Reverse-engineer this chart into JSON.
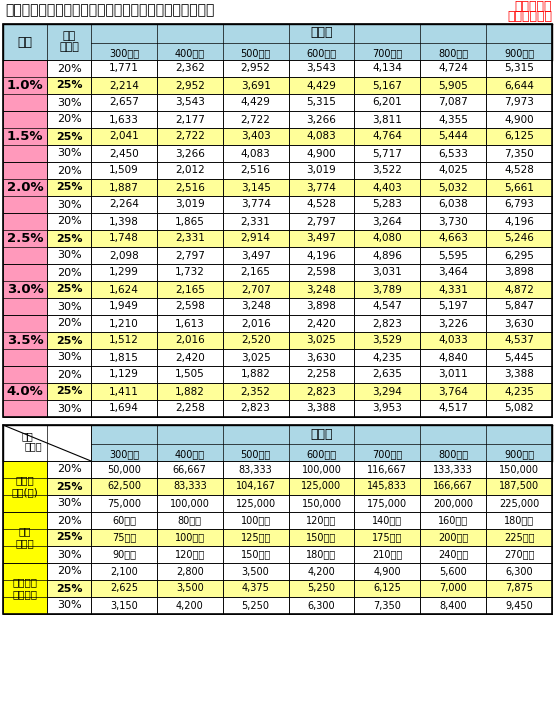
{
  "title": "金利別、年収負担率別　住宅ローン借入可能額（万円）",
  "subtitle_line1": "３５年返済",
  "subtitle_line2": "元利金等払い",
  "interest_rates": [
    "1.0%",
    "1.5%",
    "2.0%",
    "2.5%",
    "3.0%",
    "3.5%",
    "4.0%"
  ],
  "burden_rates": [
    "20%",
    "25%",
    "30%"
  ],
  "income_cols": [
    "300万円",
    "400万円",
    "500万円",
    "600万円",
    "700万円",
    "800万円",
    "900万円"
  ],
  "table1_data": [
    [
      1771,
      2362,
      2952,
      3543,
      4134,
      4724,
      5315
    ],
    [
      2214,
      2952,
      3691,
      4429,
      5167,
      5905,
      6644
    ],
    [
      2657,
      3543,
      4429,
      5315,
      6201,
      7087,
      7973
    ],
    [
      1633,
      2177,
      2722,
      3266,
      3811,
      4355,
      4900
    ],
    [
      2041,
      2722,
      3403,
      4083,
      4764,
      5444,
      6125
    ],
    [
      2450,
      3266,
      4083,
      4900,
      5717,
      6533,
      7350
    ],
    [
      1509,
      2012,
      2516,
      3019,
      3522,
      4025,
      4528
    ],
    [
      1887,
      2516,
      3145,
      3774,
      4403,
      5032,
      5661
    ],
    [
      2264,
      3019,
      3774,
      4528,
      5283,
      6038,
      6793
    ],
    [
      1398,
      1865,
      2331,
      2797,
      3264,
      3730,
      4196
    ],
    [
      1748,
      2331,
      2914,
      3497,
      4080,
      4663,
      5246
    ],
    [
      2098,
      2797,
      3497,
      4196,
      4896,
      5595,
      6295
    ],
    [
      1299,
      1732,
      2165,
      2598,
      3031,
      3464,
      3898
    ],
    [
      1624,
      2165,
      2707,
      3248,
      3789,
      4331,
      4872
    ],
    [
      1949,
      2598,
      3248,
      3898,
      4547,
      5197,
      5847
    ],
    [
      1210,
      1613,
      2016,
      2420,
      2823,
      3226,
      3630
    ],
    [
      1512,
      2016,
      2520,
      3025,
      3529,
      4033,
      4537
    ],
    [
      1815,
      2420,
      3025,
      3630,
      4235,
      4840,
      5445
    ],
    [
      1129,
      1505,
      1882,
      2258,
      2635,
      3011,
      3388
    ],
    [
      1411,
      1882,
      2352,
      2823,
      3294,
      3764,
      4235
    ],
    [
      1694,
      2258,
      2823,
      3388,
      3953,
      4517,
      5082
    ]
  ],
  "table2_monthly": [
    [
      "50,000",
      "66,667",
      "83,333",
      "100,000",
      "116,667",
      "133,333",
      "150,000"
    ],
    [
      "62,500",
      "83,333",
      "104,167",
      "125,000",
      "145,833",
      "166,667",
      "187,500"
    ],
    [
      "75,000",
      "100,000",
      "125,000",
      "150,000",
      "175,000",
      "200,000",
      "225,000"
    ]
  ],
  "table2_annual": [
    [
      "60万円",
      "80万円",
      "100万円",
      "120万円",
      "140万円",
      "160万円",
      "180万円"
    ],
    [
      "75万円",
      "100万円",
      "125万円",
      "150万円",
      "175万円",
      "200万円",
      "225万円"
    ],
    [
      "90万円",
      "120万円",
      "150万円",
      "180万円",
      "210万円",
      "240万円",
      "270万円"
    ]
  ],
  "table2_total": [
    [
      "2,100",
      "2,800",
      "3,500",
      "4,200",
      "4,900",
      "5,600",
      "6,300"
    ],
    [
      "2,625",
      "3,500",
      "4,375",
      "5,250",
      "6,125",
      "7,000",
      "7,875"
    ],
    [
      "3,150",
      "4,200",
      "5,250",
      "6,300",
      "7,350",
      "8,400",
      "9,450"
    ]
  ],
  "t2_labels": [
    "毎月返\n済額(円)",
    "年間\n返済額",
    "総返済額\n（万円）"
  ],
  "col_kinri": "金利",
  "col_nenshu_rate": "年収\n負担率",
  "col_nenshu": "年　収",
  "col_nenshu2": "年　収",
  "col_nenshu_rate2": "年収\n負担率",
  "color_pink": "#FF99BB",
  "color_yellow": "#FFFF00",
  "color_light_blue": "#ADD8E6",
  "color_light_yellow": "#FFFF99",
  "color_white": "#FFFFFF",
  "color_red": "#FF0000",
  "color_black": "#000000"
}
